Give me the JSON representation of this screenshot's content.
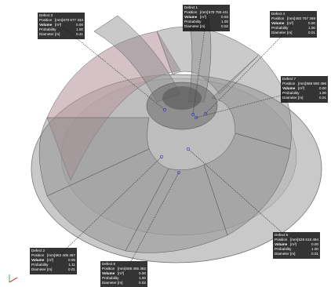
{
  "defects": [
    {
      "title": "Defect 3",
      "rows": [
        {
          "label": "Position",
          "unit": "[mm]",
          "value": "670 677 333"
        },
        {
          "label": "Volume",
          "unit": "[m³]",
          "value": "0.00"
        },
        {
          "label": "Probability",
          "value": "1.00"
        },
        {
          "label": "Diameter",
          "unit": "[m]",
          "value": "0.41"
        }
      ]
    },
    {
      "title": "Defect 1",
      "rows": [
        {
          "label": "Position",
          "unit": "[mm]",
          "value": "575 755 411"
        },
        {
          "label": "Volume",
          "unit": "[m³]",
          "value": "0.03"
        },
        {
          "label": "Probability",
          "value": "1.00"
        },
        {
          "label": "Diameter",
          "unit": "[m]",
          "value": "0.02"
        }
      ]
    },
    {
      "title": "Defect 4",
      "rows": [
        {
          "label": "Position",
          "unit": "[mm]",
          "value": "492 757 268"
        },
        {
          "label": "Volume",
          "unit": "[m³]",
          "value": "0.00"
        },
        {
          "label": "Probability",
          "value": "1.00"
        },
        {
          "label": "Diameter",
          "unit": "[m]",
          "value": "0.01"
        }
      ]
    },
    {
      "title": "Defect 7",
      "rows": [
        {
          "label": "Position",
          "unit": "[mm]",
          "value": "588 650 496"
        },
        {
          "label": "Volume",
          "unit": "[m³]",
          "value": "0.00"
        },
        {
          "label": "Probability",
          "value": "1.00"
        },
        {
          "label": "Diameter",
          "unit": "[m]",
          "value": "0.01"
        }
      ]
    },
    {
      "title": "Defect 5",
      "rows": [
        {
          "label": "Position",
          "unit": "[mm]",
          "value": "525 618 494"
        },
        {
          "label": "Volume",
          "unit": "[m³]",
          "value": "0.00"
        },
        {
          "label": "Probability",
          "value": "1.00"
        },
        {
          "label": "Diameter",
          "unit": "[m]",
          "value": "0.01"
        }
      ]
    },
    {
      "title": "Defect 6",
      "rows": [
        {
          "label": "Position",
          "unit": "[mm]",
          "value": "506 455 482"
        },
        {
          "label": "Volume",
          "unit": "[m³]",
          "value": "0.00"
        },
        {
          "label": "Probability",
          "value": "1.00"
        },
        {
          "label": "Diameter",
          "unit": "[m]",
          "value": "0.02"
        }
      ]
    },
    {
      "title": "Defect 2",
      "rows": [
        {
          "label": "Position",
          "unit": "[mm]",
          "value": "662 405 467"
        },
        {
          "label": "Volume",
          "unit": "[m³]",
          "value": "0.05"
        },
        {
          "label": "Probability",
          "value": "1.11"
        },
        {
          "label": "Diameter",
          "unit": "[m]",
          "value": "0.01"
        }
      ]
    }
  ]
}
